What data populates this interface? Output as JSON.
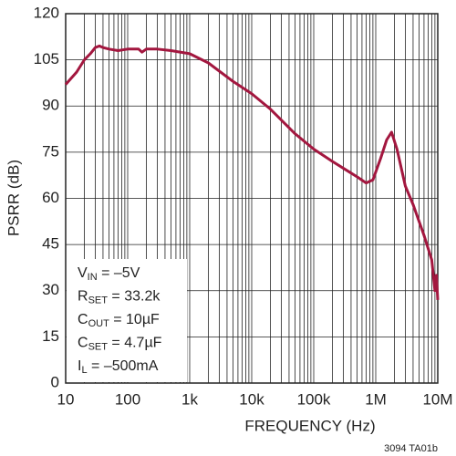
{
  "chart_data": {
    "type": "line",
    "x_label": "FREQUENCY (Hz)",
    "y_label": "PSRR (dB)",
    "footnote": "3094 TA01b",
    "log_x": true,
    "grid": true,
    "minor_grid": true,
    "xlim": [
      10,
      10000000
    ],
    "xticks": [
      10,
      100,
      {
        "value": 1000,
        "label": "1k"
      },
      {
        "value": 10000,
        "label": "10k"
      },
      {
        "value": 100000,
        "label": "100k"
      },
      {
        "value": 1000000,
        "label": "1M"
      },
      {
        "value": 10000000,
        "label": "10M"
      }
    ],
    "ylim": [
      0,
      120
    ],
    "yticks": [
      0,
      15,
      30,
      45,
      60,
      75,
      90,
      105,
      120
    ],
    "series": [
      {
        "color": "#a3173f",
        "x": [
          10,
          15,
          20,
          25,
          30,
          35,
          40,
          50,
          70,
          100,
          150,
          170,
          200,
          300,
          500,
          1000,
          2000,
          5000,
          10000,
          20000,
          50000,
          100000,
          200000,
          500000,
          700000,
          900000,
          1200000,
          1500000,
          1800000,
          2200000,
          3000000,
          4000000,
          6000000,
          8000000,
          9000000,
          9500000,
          10000000
        ],
        "values": [
          97,
          101,
          105,
          107,
          109,
          109.5,
          109,
          108.5,
          108,
          108.5,
          108.5,
          107.5,
          108.5,
          108.5,
          108,
          107,
          104,
          98,
          94,
          89,
          81,
          76,
          72,
          67,
          65,
          66,
          73,
          79,
          81.5,
          76,
          64,
          58,
          48,
          40,
          30,
          35,
          27
        ]
      }
    ],
    "annotations": [
      {
        "main": "V",
        "sub": "IN",
        "rest": " = –5V"
      },
      {
        "main": "R",
        "sub": "SET",
        "rest": " = 33.2k"
      },
      {
        "main": "C",
        "sub": "OUT",
        "rest": " = 10µF"
      },
      {
        "main": "C",
        "sub": "SET",
        "rest": " = 4.7µF"
      },
      {
        "main": "I",
        "sub": "L",
        "rest": " = –500mA"
      }
    ]
  }
}
